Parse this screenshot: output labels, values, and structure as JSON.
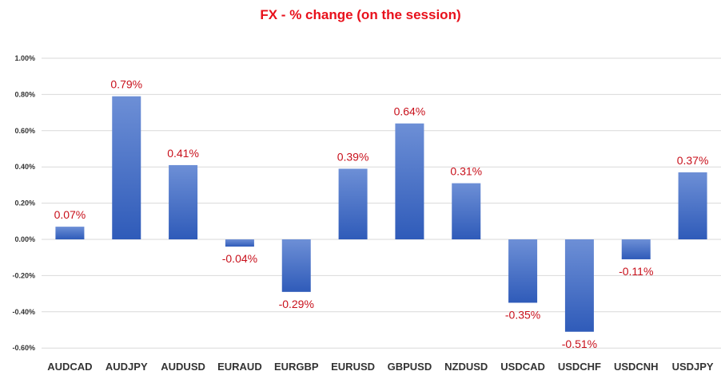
{
  "chart_data": {
    "type": "bar",
    "title": "FX - % change (on the session)",
    "categories": [
      "AUDCAD",
      "AUDJPY",
      "AUDUSD",
      "EURAUD",
      "EURGBP",
      "EURUSD",
      "GBPUSD",
      "NZDUSD",
      "USDCAD",
      "USDCHF",
      "USDCNH",
      "USDJPY"
    ],
    "values": [
      0.07,
      0.79,
      0.41,
      -0.04,
      -0.29,
      0.39,
      0.64,
      0.31,
      -0.35,
      -0.51,
      -0.11,
      0.37
    ],
    "data_labels": [
      "0.07%",
      "0.79%",
      "0.41%",
      "-0.04%",
      "-0.29%",
      "0.39%",
      "0.64%",
      "0.31%",
      "-0.35%",
      "-0.51%",
      "-0.11%",
      "0.37%"
    ],
    "y_ticks": [
      1.0,
      0.8,
      0.6,
      0.4,
      0.2,
      0.0,
      -0.2,
      -0.4,
      -0.6
    ],
    "y_tick_labels": [
      "1.00%",
      "0.80%",
      "0.60%",
      "0.40%",
      "0.20%",
      "0.00%",
      "-0.20%",
      "-0.40%",
      "-0.60%"
    ],
    "ylim": [
      -0.6,
      1.0
    ],
    "xlabel": "",
    "ylabel": "",
    "grid": true,
    "legend": "none",
    "colors": {
      "bar_top": "#6d8fd6",
      "bar_bottom": "#2f5bb9",
      "label": "#c8101b",
      "title": "#e8101b",
      "grid": "#d9d9d9",
      "axis_text": "#333333"
    }
  }
}
